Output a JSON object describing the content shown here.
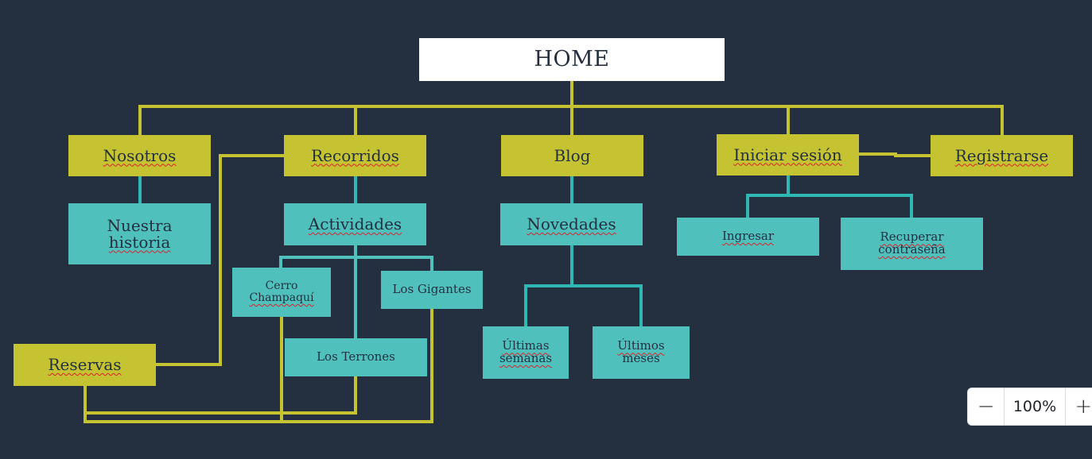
{
  "nodes": {
    "home": "HOME",
    "nosotros": "Nosotros",
    "recorridos": "Recorridos",
    "blog": "Blog",
    "iniciar_sesion": "Iniciar sesión",
    "registrarse": "Registrarse",
    "nuestra_historia_1": "Nuestra",
    "nuestra_historia_2": "historia",
    "actividades": "Actividades",
    "novedades": "Novedades",
    "ingresar": "Ingresar",
    "recuperar_1": "Recuperar",
    "recuperar_2": "contraseña",
    "cerro_1": "Cerro",
    "cerro_2": "Champaquí",
    "los_gigantes": "Los Gigantes",
    "los_terrones": "Los Terrones",
    "reservas": "Reservas",
    "ultimas_1": "Últimas",
    "ultimas_2": "semanas",
    "ultimos_1": "Últimos",
    "ultimos_2": "meses"
  },
  "zoom": {
    "minus": "−",
    "level": "100%",
    "plus": "+"
  },
  "colors": {
    "background": "#243040",
    "yellow": "#c5c331",
    "teal": "#4fc0bc",
    "connector_teal": "#2fb7b3",
    "text": "#243040",
    "spellcheck": "#d8242c"
  }
}
